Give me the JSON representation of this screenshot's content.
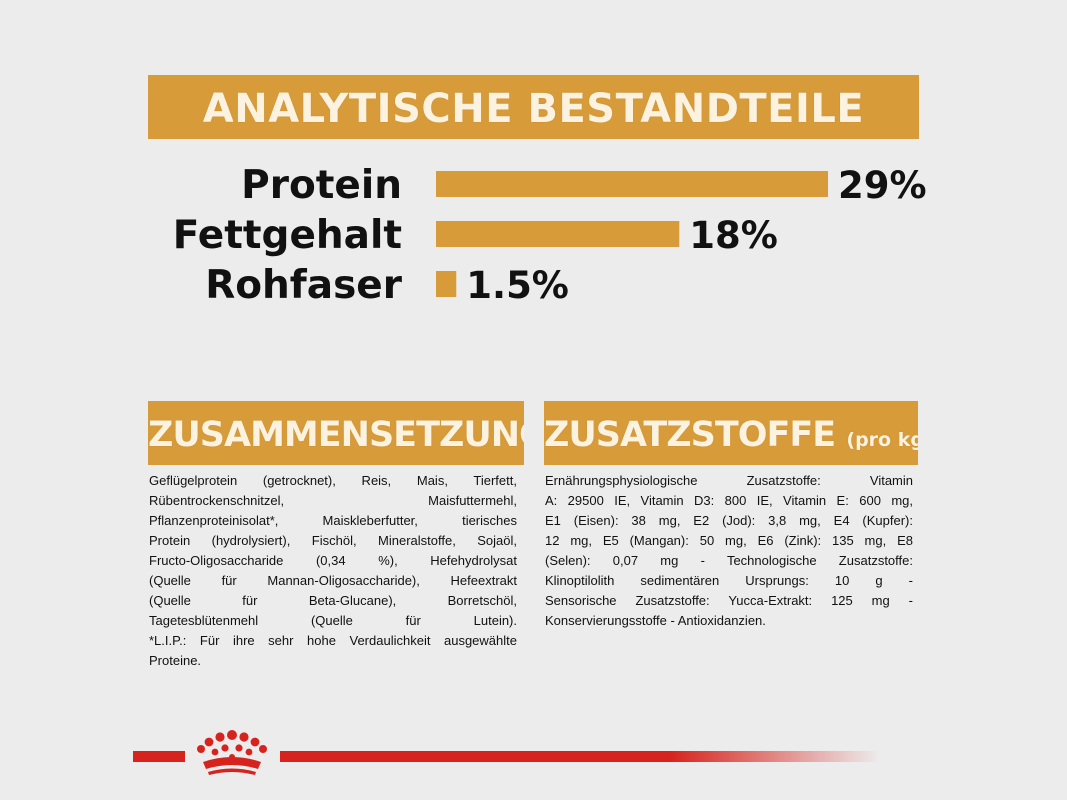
{
  "header": {
    "title": "ANALYTISCHE BESTANDTEILE"
  },
  "chart_data": {
    "type": "bar",
    "orientation": "horizontal",
    "title": "ANALYTISCHE BESTANDTEILE",
    "categories": [
      "Protein",
      "Fettgehalt",
      "Rohfaser"
    ],
    "values": [
      29,
      18,
      1.5
    ],
    "value_labels": [
      "29%",
      "18%",
      "1.5%"
    ],
    "unit": "%",
    "xlim": [
      0,
      29
    ],
    "grid": false,
    "bar_color": "#d79b3a"
  },
  "composition": {
    "title": "ZUSAMMENSETZUNG",
    "lines": [
      "Geflügelprotein (getrocknet), Reis, Mais, Tierfett,",
      "Rübentrockenschnitzel, Maisfuttermehl,",
      "Pflanzenproteinisolat*, Maiskleberfutter, tierisches",
      "Protein (hydrolysiert), Fischöl, Mineralstoffe, Sojaöl,",
      "Fructo-Oligosaccharide (0,34 %), Hefehydrolysat",
      "(Quelle für Mannan-Oligosaccharide), Hefeextrakt",
      "(Quelle für Beta-Glucane), Borretschöl,",
      "Tagetesblütenmehl (Quelle für Lutein).",
      "*L.I.P.: Für ihre sehr hohe Verdaulichkeit ausgewählte",
      "Proteine."
    ]
  },
  "additives": {
    "title": "ZUSATZSTOFFE",
    "title_suffix": "(pro kg)",
    "lines": [
      "Ernährungsphysiologische Zusatzstoffe: Vitamin",
      "A: 29500 IE, Vitamin D3: 800 IE, Vitamin E: 600 mg,",
      "E1 (Eisen): 38 mg, E2 (Jod): 3,8 mg, E4 (Kupfer):",
      "12 mg, E5 (Mangan): 50 mg, E6 (Zink): 135 mg, E8",
      "(Selen): 0,07 mg - Technologische Zusatzstoffe:",
      "Klinoptilolith sedimentären Ursprungs: 10 g -",
      "Sensorische Zusatzstoffe: Yucca-Extrakt: 125 mg -",
      "Konservierungsstoffe - Antioxidanzien."
    ]
  },
  "colors": {
    "accent": "#d79b3a",
    "brand_red": "#d7231d",
    "background": "#ececec"
  },
  "footer": {
    "logo": "crown-icon"
  }
}
